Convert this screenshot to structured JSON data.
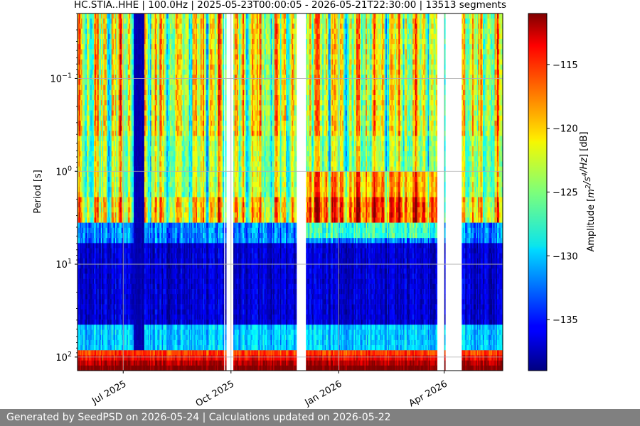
{
  "chart_data": {
    "type": "heatmap",
    "title": "HC.STIA..HHE | 100.0Hz | 2025-05-23T00:00:05 - 2026-05-21T22:30:00 | 13513 segments",
    "ylabel": "Period [s]",
    "xlabel": "",
    "y_scale": "log",
    "y_axis_inverted": true,
    "ylim": [
      0.02,
      140
    ],
    "x_range": [
      "2025-05-23",
      "2026-05-21"
    ],
    "x_ticks": [
      {
        "date": "2025-07-01",
        "label": "Jul 2025"
      },
      {
        "date": "2025-10-01",
        "label": "Oct 2025"
      },
      {
        "date": "2026-01-01",
        "label": "Jan 2026"
      },
      {
        "date": "2026-04-01",
        "label": "Apr 2026"
      }
    ],
    "y_ticks": [
      {
        "value": 0.1,
        "base": "10",
        "exp": "−1"
      },
      {
        "value": 1,
        "base": "10",
        "exp": "0"
      },
      {
        "value": 10,
        "base": "10",
        "exp": "1"
      },
      {
        "value": 100,
        "base": "10",
        "exp": "2"
      }
    ],
    "grid": true,
    "colormap": "jet",
    "colorbar": {
      "label_pre": "Amplitude [",
      "label_post": "] [dB]",
      "label_unit_parts": [
        {
          "t": "m",
          "sup": "2"
        },
        {
          "t": "/s",
          "sup": "4"
        },
        {
          "t": "/Hz",
          "sup": ""
        }
      ],
      "range": [
        -139,
        -111
      ],
      "ticks": [
        -115,
        -120,
        -125,
        -130,
        -135
      ]
    },
    "data_gaps": [
      [
        "2025-09-25",
        "2025-09-26"
      ],
      [
        "2025-09-27",
        "2025-10-03"
      ],
      [
        "2025-11-26",
        "2025-12-04"
      ],
      [
        "2026-03-26",
        "2026-04-01"
      ],
      [
        "2026-04-02",
        "2026-04-16"
      ]
    ],
    "dark_period": [
      "2025-07-10",
      "2025-07-19"
    ]
  },
  "footer": {
    "text": "Generated by SeedPSD on 2026-05-24 | Calculations updated on 2026-05-22"
  },
  "colors": {
    "footer_bg": "#808080",
    "grid": "#b0b0b0"
  }
}
